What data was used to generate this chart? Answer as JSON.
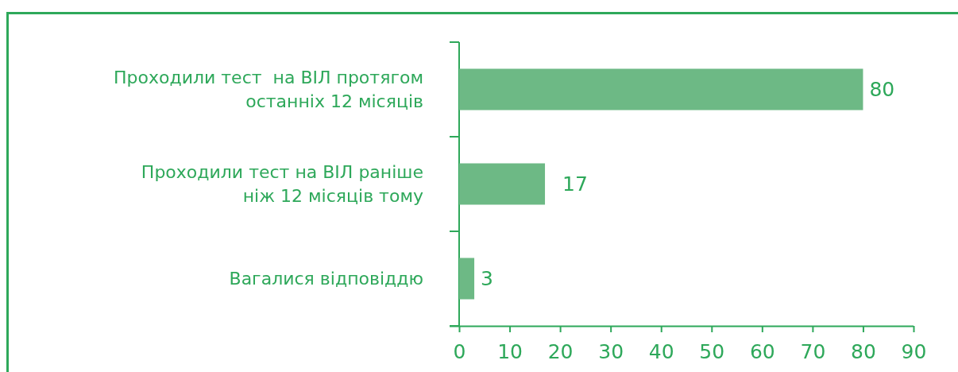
{
  "chart_data": {
    "type": "bar",
    "orientation": "horizontal",
    "categories": [
      "Проходили тест  на ВІЛ протягом\nостанніх 12 місяців",
      "Проходили тест на ВІЛ раніше\nніж 12 місяців тому",
      "Вагалися відповіддю"
    ],
    "values": [
      80,
      17,
      3
    ],
    "color": "#6db985",
    "xlim": [
      0,
      90
    ],
    "xticks": [
      0,
      10,
      20,
      30,
      40,
      50,
      60,
      70,
      80,
      90
    ],
    "data_labels": true
  }
}
